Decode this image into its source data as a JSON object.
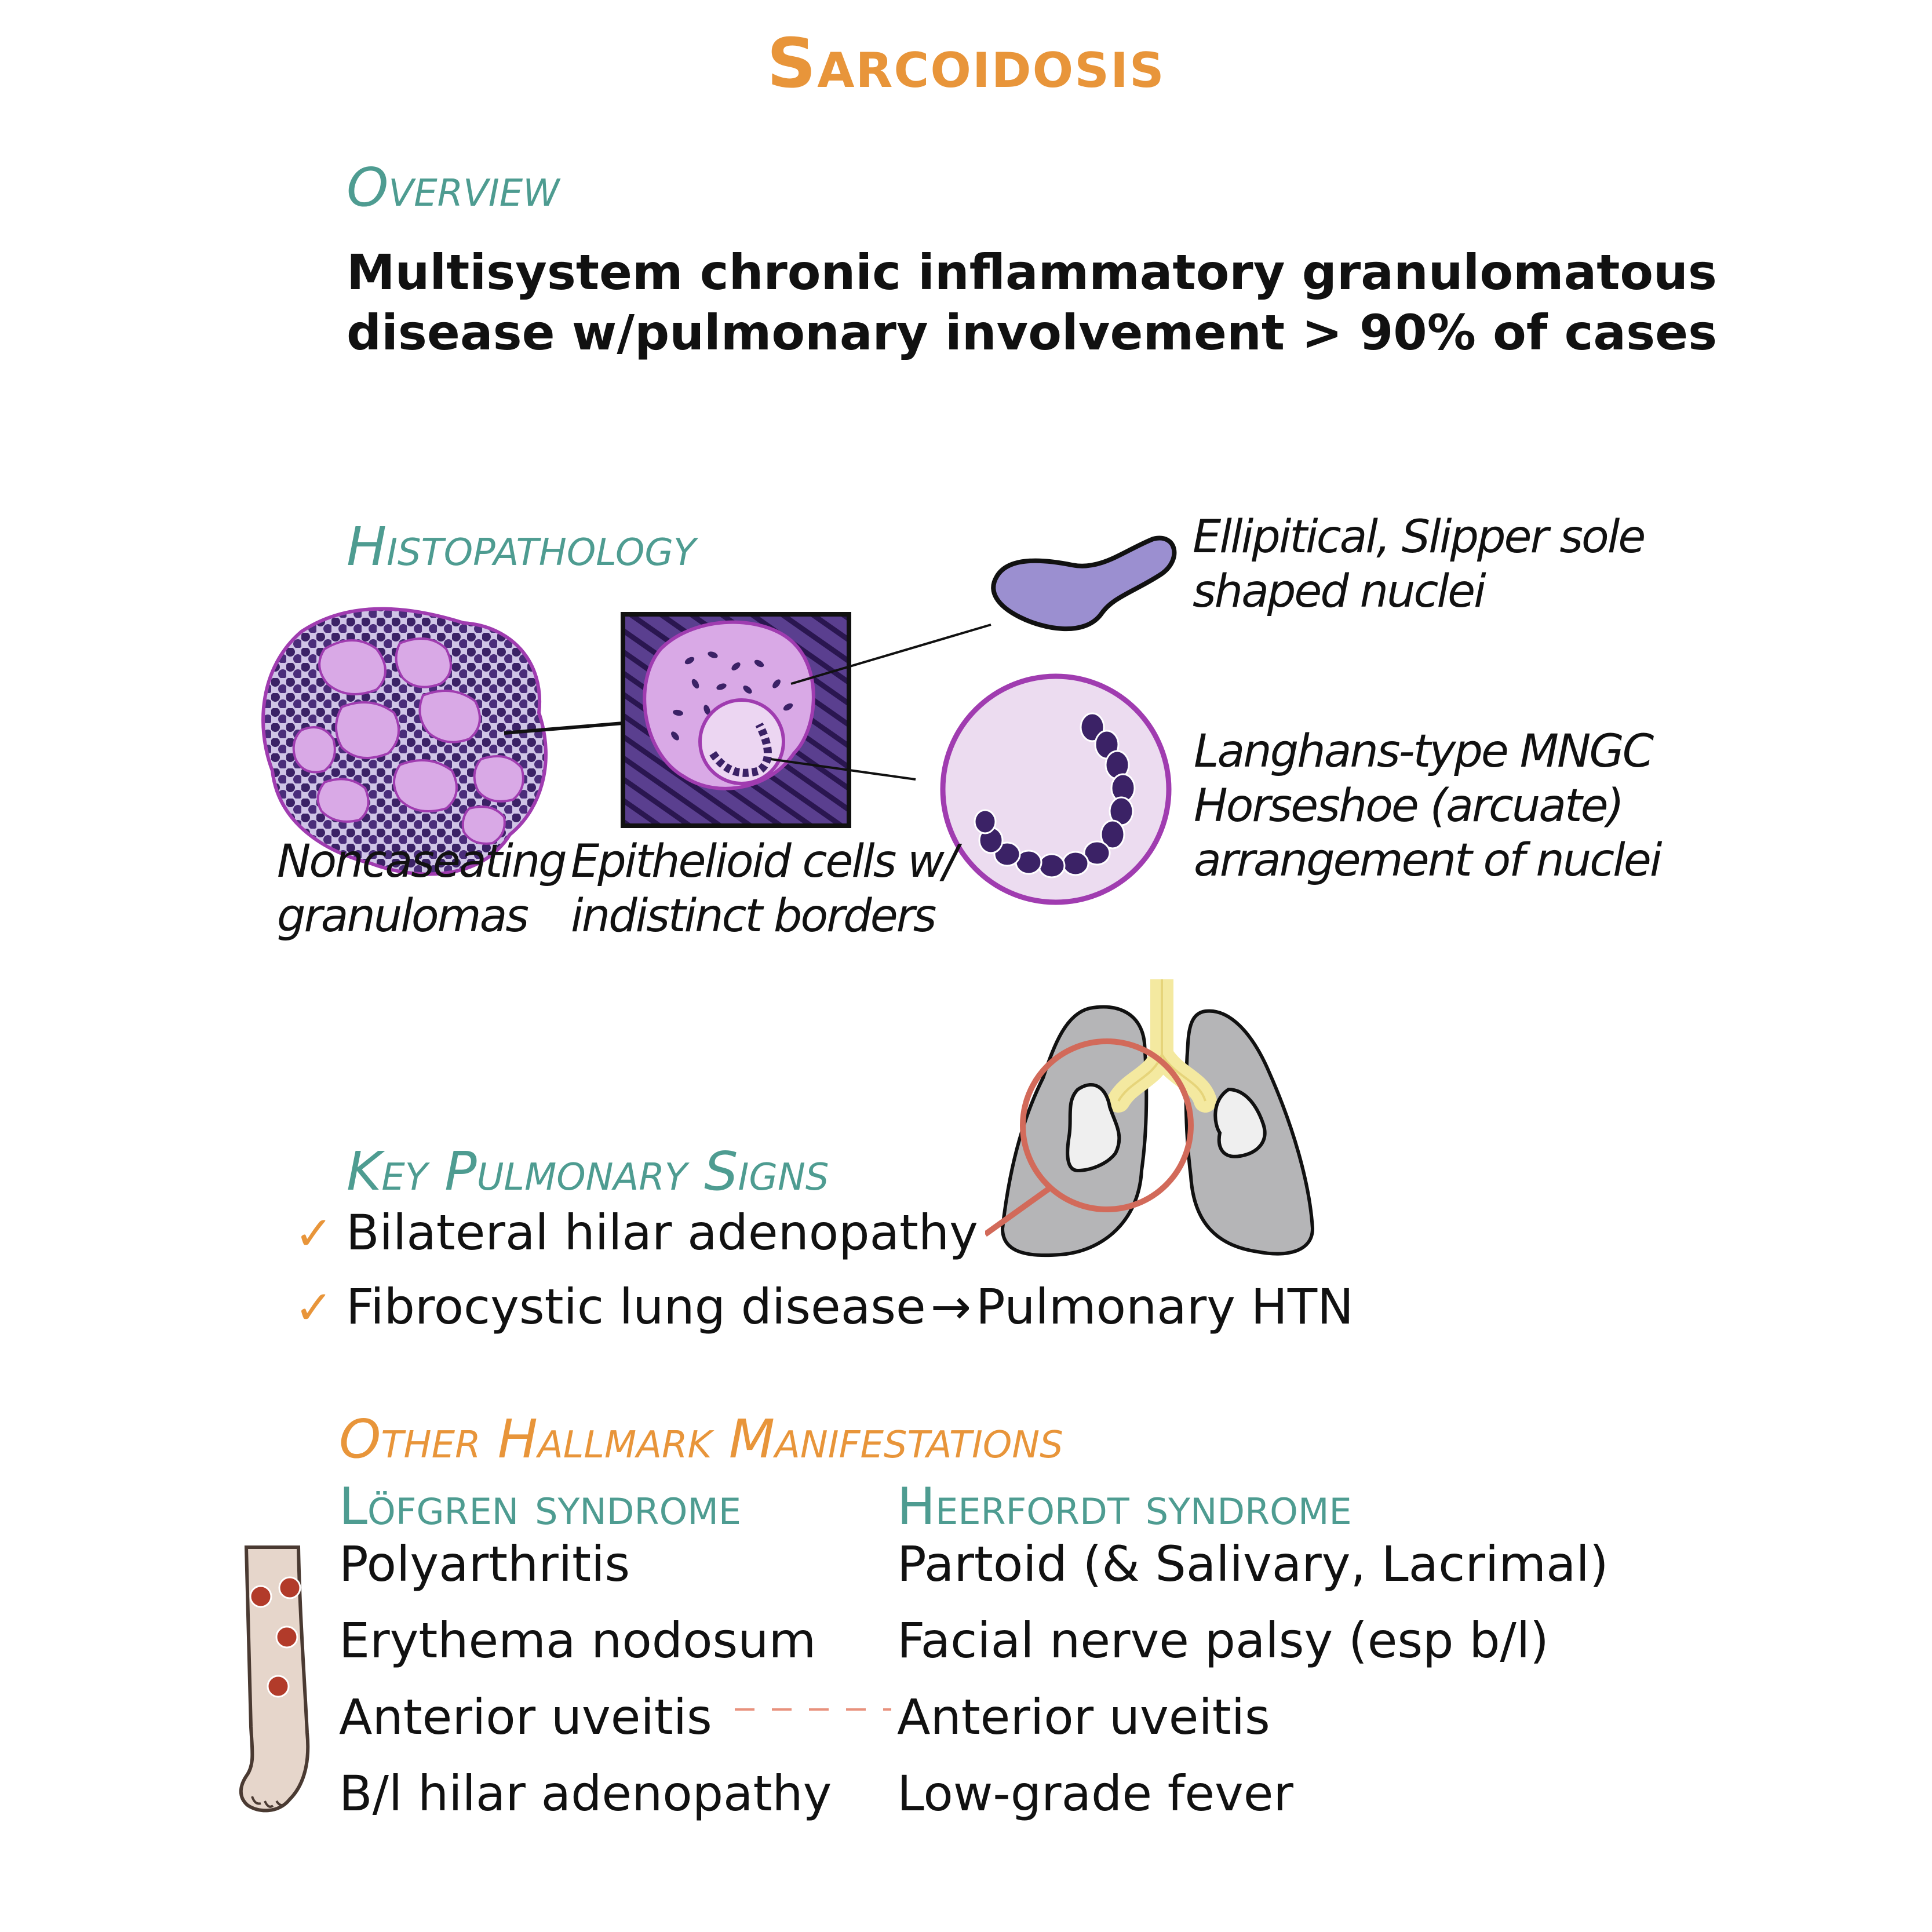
{
  "title": "Sarcoidosis",
  "overview": {
    "heading": "Overview",
    "line1": "Multisystem chronic inflammatory granulomatous",
    "line2": "disease w/pulmonary involvement > 90% of cases"
  },
  "histopathology": {
    "heading": "Histopathology",
    "granuloma_caption_1": "Noncaseating",
    "granuloma_caption_2": "granulomas",
    "epithelioid_caption_1": "Epithelioid cells w/",
    "epithelioid_caption_2": "indistinct borders",
    "nuclei_caption_1": "Ellipitical, Slipper sole",
    "nuclei_caption_2": "shaped nuclei",
    "langhans_caption_1": "Langhans-type MNGC",
    "langhans_caption_2": "Horseshoe (arcuate)",
    "langhans_caption_3": "arrangement of nuclei"
  },
  "pulmonary": {
    "heading": "Key Pulmonary Signs",
    "items": [
      {
        "text": "Bilateral hilar adenopathy"
      },
      {
        "text": "Fibrocystic lung disease",
        "arrow": "→",
        "result": "Pulmonary HTN"
      }
    ]
  },
  "other": {
    "heading": "Other Hallmark Manifestations",
    "lofgren": {
      "title": "Löfgren syndrome",
      "items": [
        "Polyarthritis",
        "Erythema nodosum",
        "Anterior uveitis",
        "B/l hilar adenopathy"
      ]
    },
    "heerfordt": {
      "title": "Heerfordt syndrome",
      "items": [
        "Partoid (& Salivary, Lacrimal)",
        "Facial nerve palsy (esp b/l)",
        "Anterior uveitis",
        "Low-grade fever"
      ]
    }
  },
  "colors": {
    "title": "#e8953a",
    "heading": "#4e9c91",
    "check": "#e8953a",
    "nucleus_purple": "#3b2266",
    "cell_pink": "#d9a9e6",
    "cell_border": "#a03cb0",
    "nucleus_lavender": "#9b8fd0",
    "lung_gray": "#b5b5b7",
    "trachea_yellow": "#f4e9a0",
    "magnifier": "#d26a5a",
    "nodule_red": "#b23b2a",
    "leg_skin": "#e6d6cb"
  }
}
